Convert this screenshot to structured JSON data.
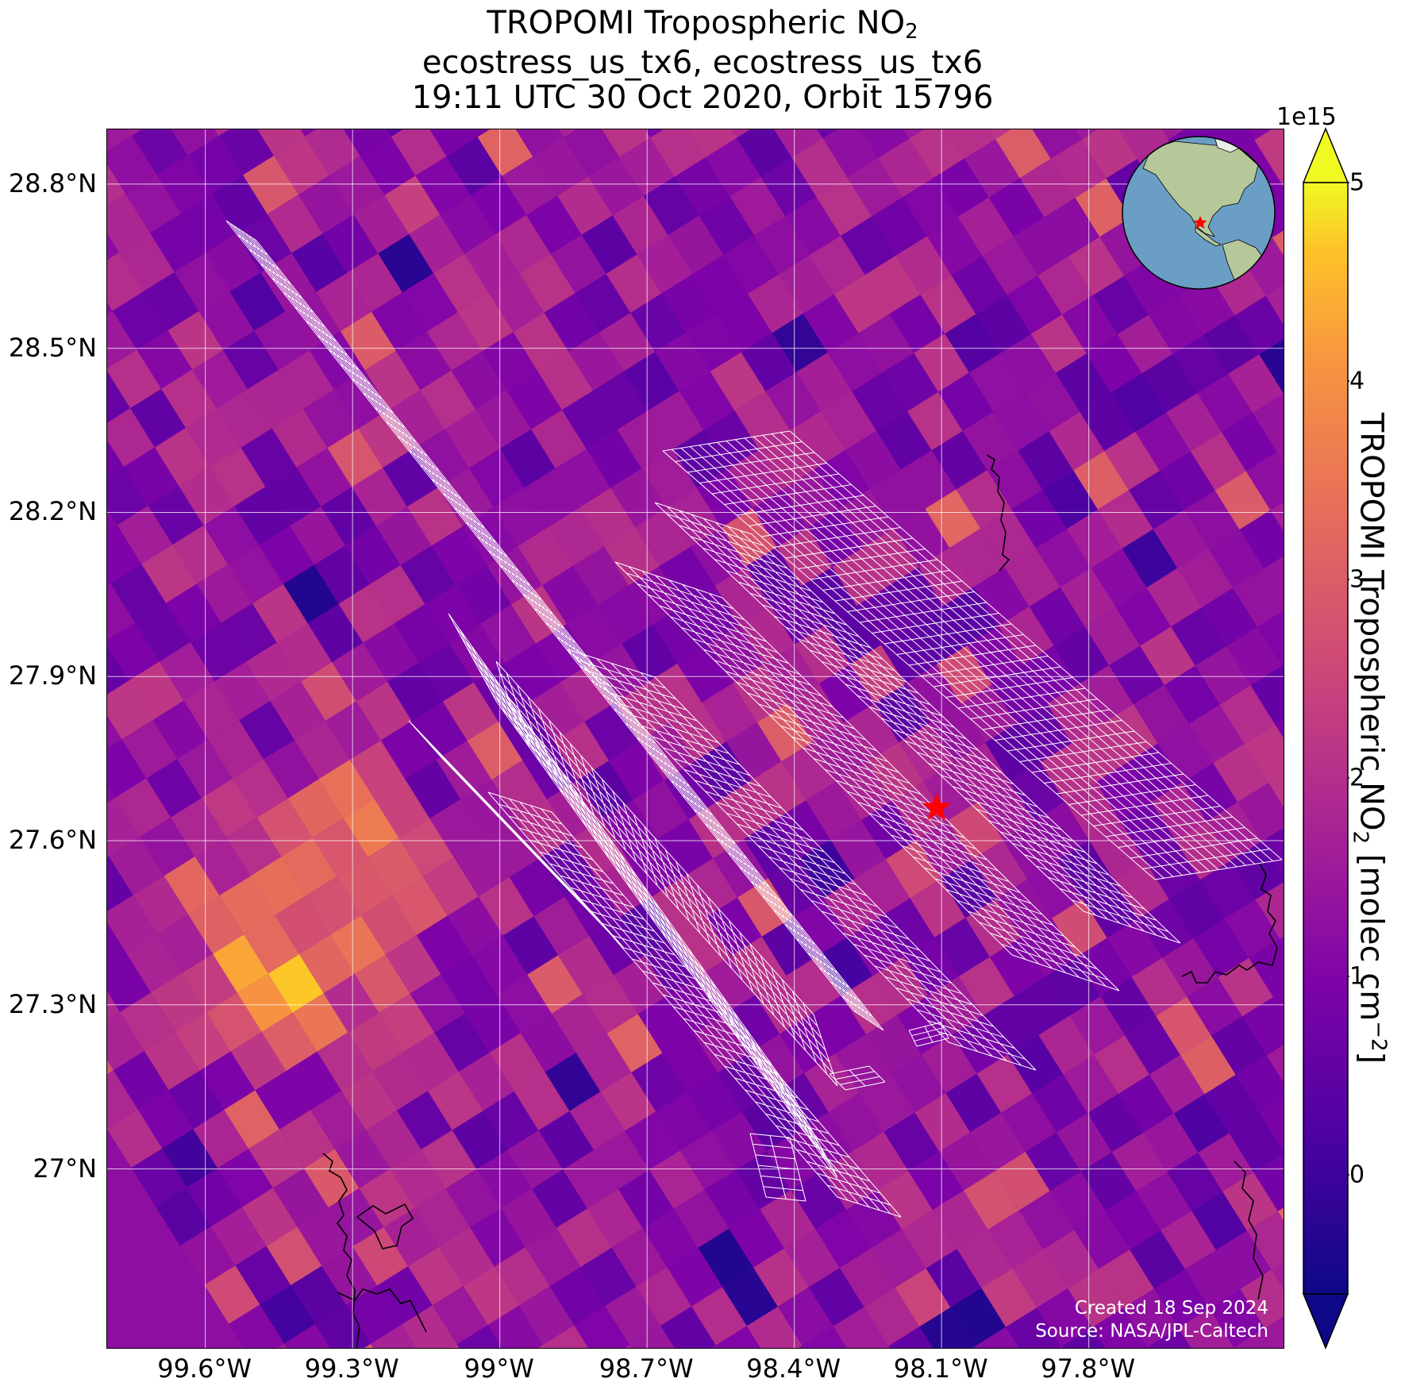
{
  "title": {
    "line1_main": "TROPOMI Tropospheric NO",
    "line1_sub": "2",
    "line2": "ecostress_us_tx6, ecostress_us_tx6",
    "line3": "19:11 UTC 30 Oct 2020, Orbit 15796"
  },
  "map": {
    "lon_range": [
      -99.8,
      -97.4
    ],
    "lat_range": [
      26.67,
      28.9
    ],
    "lon_ticks": [
      {
        "value": -99.6,
        "label": "99.6°W"
      },
      {
        "value": -99.3,
        "label": "99.3°W"
      },
      {
        "value": -99.0,
        "label": "99°W"
      },
      {
        "value": -98.7,
        "label": "98.7°W"
      },
      {
        "value": -98.4,
        "label": "98.4°W"
      },
      {
        "value": -98.1,
        "label": "98.1°W"
      },
      {
        "value": -97.8,
        "label": "97.8°W"
      }
    ],
    "lat_ticks": [
      {
        "value": 28.8,
        "label": "28.8°N"
      },
      {
        "value": 28.5,
        "label": "28.5°N"
      },
      {
        "value": 28.2,
        "label": "28.2°N"
      },
      {
        "value": 27.9,
        "label": "27.9°N"
      },
      {
        "value": 27.6,
        "label": "27.6°N"
      },
      {
        "value": 27.3,
        "label": "27.3°N"
      },
      {
        "value": 27.0,
        "label": "27°N"
      }
    ],
    "site_marker": {
      "lon": -98.11,
      "lat": 27.66,
      "color": "#ff0000"
    },
    "colormap": "plasma",
    "gridlines": true,
    "overlay_color": "#ffffff"
  },
  "credits": {
    "created": "Created 18 Sep 2024",
    "source": "Source: NASA/JPL-Caltech"
  },
  "colorbar": {
    "exponent": "1e15",
    "label_main": "TROPOMI Tropospheric NO",
    "label_sub": "2",
    "label_units": " [molec cm",
    "label_sup": "−2",
    "label_close": "]",
    "range": [
      -0.6,
      5.0
    ],
    "extend": "both",
    "ticks": [
      {
        "value": 0,
        "label": "0"
      },
      {
        "value": 1,
        "label": "1"
      },
      {
        "value": 2,
        "label": "2"
      },
      {
        "value": 3,
        "label": "3"
      },
      {
        "value": 4,
        "label": "4"
      },
      {
        "value": 5,
        "label": "5"
      }
    ]
  },
  "inset_globe": {
    "ocean_color": "#6a9ec4",
    "land_color": "#b6c79a",
    "marker_color": "#ff0000"
  }
}
